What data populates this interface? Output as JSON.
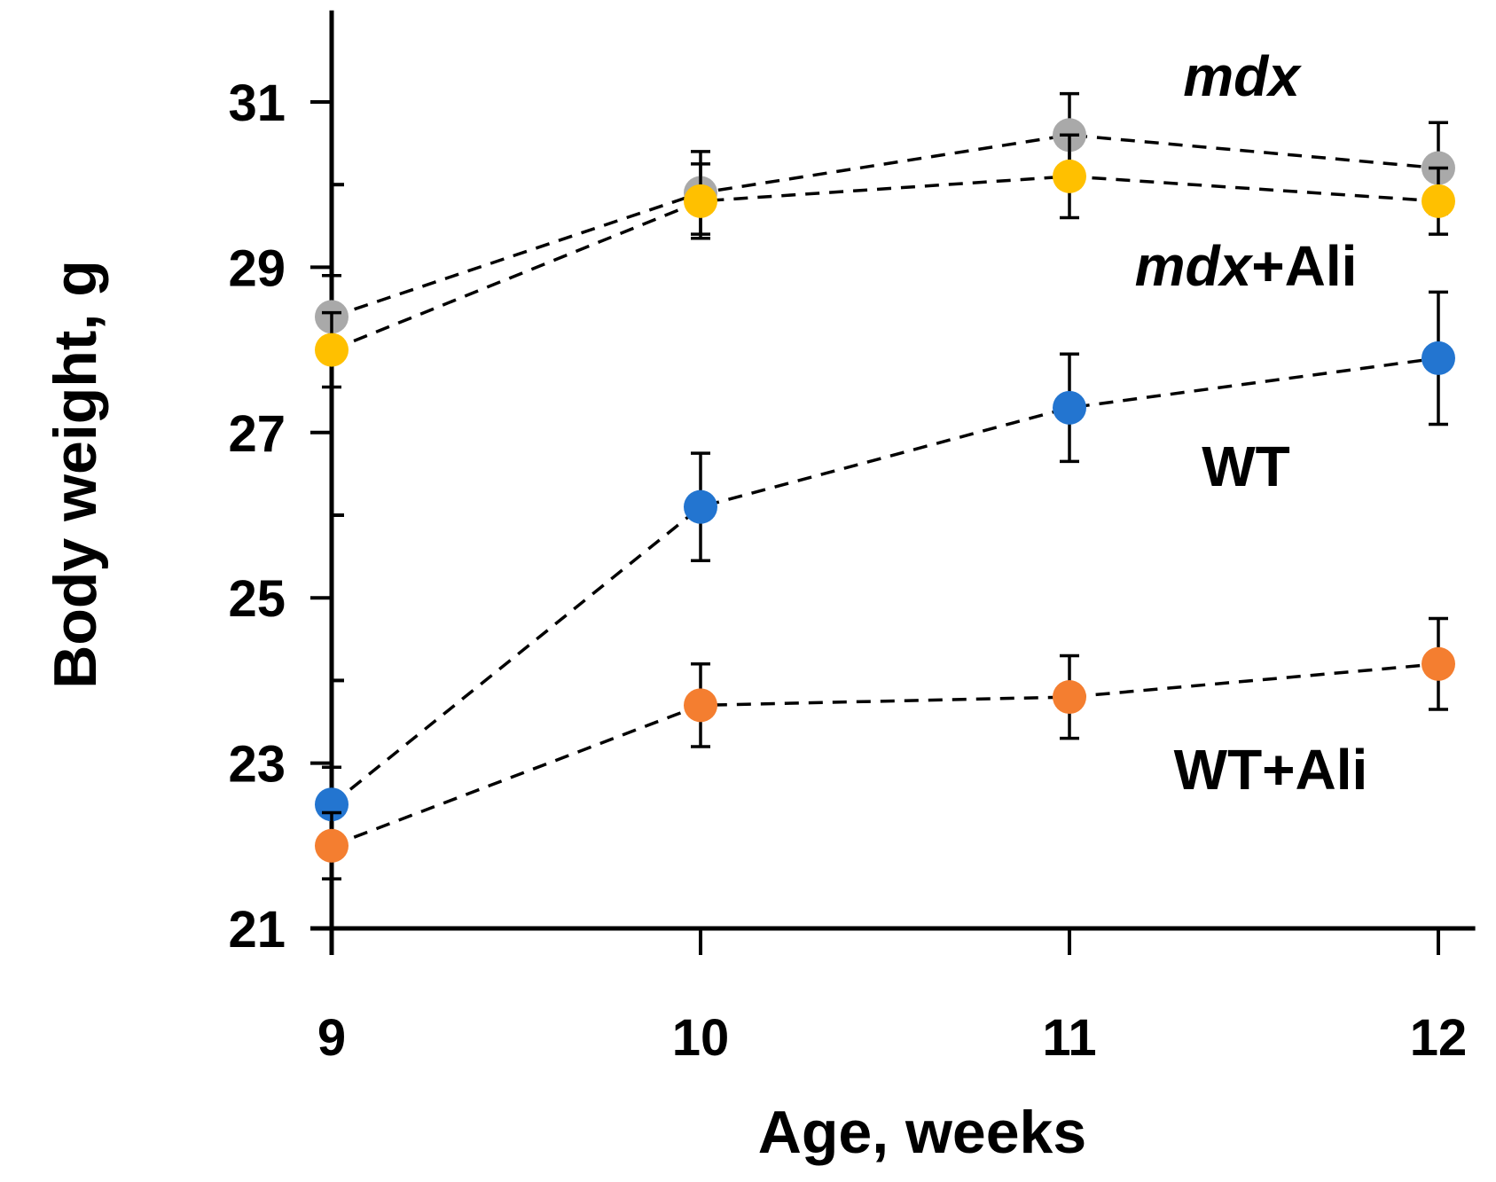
{
  "chart_data": {
    "type": "line",
    "xlabel": "Age, weeks",
    "ylabel": "Body weight, g",
    "x": [
      9,
      10,
      11,
      12
    ],
    "xlim": [
      8.95,
      12.1
    ],
    "ylim": [
      21,
      32
    ],
    "yticks": [
      21,
      23,
      25,
      27,
      29,
      31
    ],
    "xticks": [
      9,
      10,
      11,
      12
    ],
    "grid": false,
    "series": [
      {
        "name": "mdx",
        "color": "#a9a9a9",
        "values": [
          28.4,
          29.9,
          30.6,
          30.2
        ],
        "errors": [
          0.5,
          0.5,
          0.5,
          0.55
        ]
      },
      {
        "name": "mdx+Ali",
        "color": "#ffc000",
        "values": [
          28.0,
          29.8,
          30.1,
          29.8
        ],
        "errors": [
          0.45,
          0.45,
          0.5,
          0.4
        ]
      },
      {
        "name": "WT",
        "color": "#2375d0",
        "values": [
          22.5,
          26.1,
          27.3,
          27.9
        ],
        "errors": [
          0.45,
          0.65,
          0.65,
          0.8
        ]
      },
      {
        "name": "WT+Ali",
        "color": "#f47e30",
        "values": [
          22.0,
          23.7,
          23.8,
          24.2
        ],
        "errors": [
          0.4,
          0.5,
          0.5,
          0.55
        ]
      }
    ],
    "annotations": [
      {
        "italic": "mdx",
        "text": ""
      },
      {
        "italic": "mdx",
        "text": "+Ali"
      },
      {
        "italic": "",
        "text": "WT"
      },
      {
        "italic": "",
        "text": "WT+Ali"
      }
    ]
  }
}
